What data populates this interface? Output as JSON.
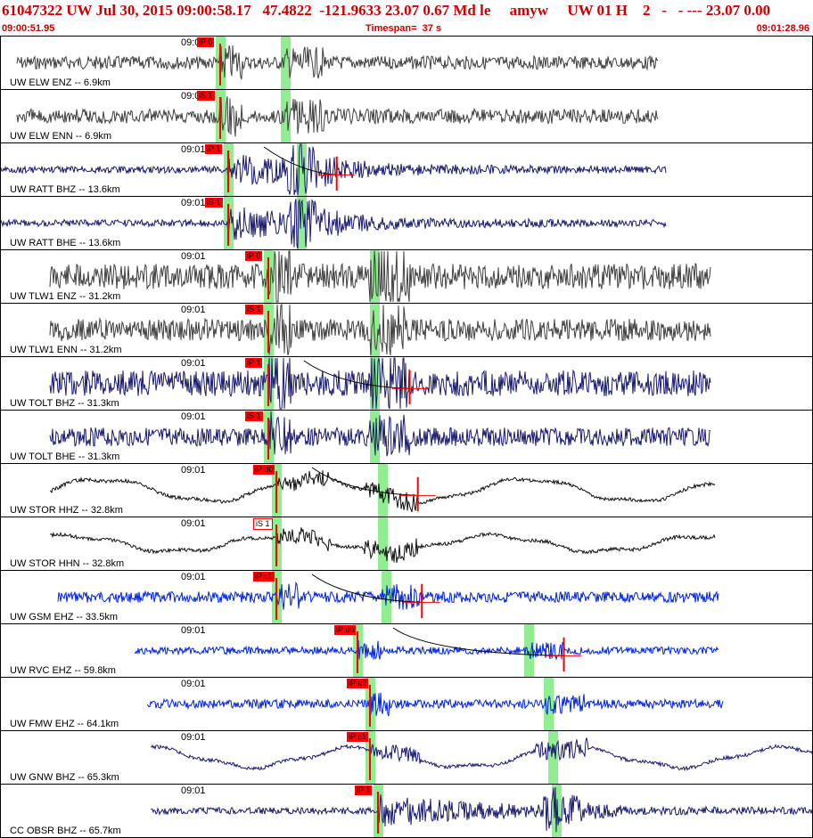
{
  "header": {
    "title": "61047322 UW Jul 30, 2015 09:00:58.17   47.4822  -121.9633 23.07 0.67 Md le     amyw     UW 01 H    2   -   - --- 23.07 0.00",
    "start_time": "09:00:51.95",
    "timespan": "Timespan=  37 s",
    "end_time": "09:01:28.96"
  },
  "colors": {
    "title": "#cc0000",
    "pick": "#ff0000",
    "phase_window": "#90ee90",
    "trace_gray": "#404040",
    "trace_navy": "#1a1a6e",
    "trace_blue": "#0022dd",
    "trace_black": "#111111"
  },
  "panels": [
    {
      "time_label": "09:01",
      "channel": "UW ELW ENZ -- 6.9km",
      "pick": "iP 0",
      "pick_style": "filled",
      "color": "#404040",
      "style": "noise",
      "start": 0.02,
      "end": 0.81,
      "onset": 0.27,
      "secondary": 0.355,
      "amp": 0.18,
      "windows": [
        0.27,
        0.35
      ]
    },
    {
      "time_label": "09:01",
      "channel": "UW ELW ENN -- 6.9km",
      "pick": "iS 1",
      "pick_style": "filled",
      "color": "#404040",
      "style": "noise",
      "start": 0.02,
      "end": 0.81,
      "onset": 0.27,
      "secondary": 0.355,
      "amp": 0.2,
      "windows": [
        0.27,
        0.35
      ]
    },
    {
      "time_label": "09:01",
      "channel": "UW RATT BHZ -- 13.6km",
      "pick": "iP 1",
      "pick_style": "filled",
      "color": "#1a1a6e",
      "style": "quake",
      "start": 0.0,
      "end": 0.82,
      "onset": 0.28,
      "secondary": 0.37,
      "amp": 0.35,
      "windows": [
        0.28,
        0.37
      ],
      "coda": true
    },
    {
      "time_label": "09:01",
      "channel": "UW RATT BHE -- 13.6km",
      "pick": "iS 1",
      "pick_style": "filled",
      "color": "#1a1a6e",
      "style": "quake",
      "start": 0.0,
      "end": 0.82,
      "onset": 0.28,
      "secondary": 0.37,
      "amp": 0.4,
      "windows": [
        0.28,
        0.37
      ]
    },
    {
      "time_label": "09:01",
      "channel": "UW TLW1 ENZ -- 31.2km",
      "pick": "iP 0",
      "pick_style": "filled",
      "color": "#404040",
      "style": "noise",
      "start": 0.06,
      "end": 0.875,
      "onset": 0.33,
      "secondary": 0.46,
      "amp": 0.35,
      "windows": [
        0.33,
        0.46
      ]
    },
    {
      "time_label": "09:01",
      "channel": "UW TLW1 ENN -- 31.2km",
      "pick": "iS 1",
      "pick_style": "filled",
      "color": "#404040",
      "style": "noise",
      "start": 0.06,
      "end": 0.875,
      "onset": 0.33,
      "secondary": 0.46,
      "amp": 0.3,
      "windows": [
        0.33,
        0.46
      ]
    },
    {
      "time_label": "09:01",
      "channel": "UW TOLT BHZ -- 31.3km",
      "pick": "iP 1",
      "pick_style": "filled",
      "color": "#1a1a6e",
      "style": "noise",
      "start": 0.06,
      "end": 0.875,
      "onset": 0.33,
      "secondary": 0.46,
      "amp": 0.35,
      "windows": [
        0.33,
        0.46
      ],
      "coda": true
    },
    {
      "time_label": "09:01",
      "channel": "UW TOLT BHE -- 31.3km",
      "pick": "iS 1",
      "pick_style": "filled",
      "color": "#1a1a6e",
      "style": "noise",
      "start": 0.06,
      "end": 0.875,
      "onset": 0.33,
      "secondary": 0.46,
      "amp": 0.25,
      "windows": [
        0.33,
        0.46
      ]
    },
    {
      "time_label": "09:01",
      "channel": "UW STOR HHZ -- 32.8km",
      "pick": "iP d0",
      "pick_style": "filled",
      "color": "#111111",
      "style": "wave",
      "start": 0.06,
      "end": 0.88,
      "onset": 0.34,
      "secondary": 0.47,
      "amp": 0.35,
      "windows": [
        0.34,
        0.47
      ],
      "coda": true
    },
    {
      "time_label": "09:01",
      "channel": "UW STOR HHN -- 32.8km",
      "pick": "iS 1",
      "pick_style": "hollow",
      "color": "#111111",
      "style": "wave",
      "start": 0.06,
      "end": 0.88,
      "onset": 0.34,
      "secondary": 0.47,
      "amp": 0.25,
      "windows": [
        0.34,
        0.47
      ]
    },
    {
      "time_label": "09:01",
      "channel": "UW GSM EHZ -- 33.5km",
      "pick": "iP c1",
      "pick_style": "filled",
      "color": "#0022dd",
      "style": "noise",
      "start": 0.07,
      "end": 0.885,
      "onset": 0.34,
      "secondary": 0.475,
      "amp": 0.15,
      "windows": [
        0.34,
        0.475
      ],
      "coda": true
    },
    {
      "time_label": "09:01",
      "channel": "UW RVC EHZ -- 59.8km",
      "pick": "iP d0",
      "pick_style": "filled",
      "color": "#0022dd",
      "style": "noise",
      "start": 0.165,
      "end": 0.885,
      "onset": 0.44,
      "secondary": 0.65,
      "amp": 0.1,
      "windows": [
        0.44,
        0.65
      ],
      "coda": true
    },
    {
      "time_label": "09:01",
      "channel": "UW FMW EHZ -- 64.1km",
      "pick": "iP d2",
      "pick_style": "filled",
      "color": "#0022dd",
      "style": "noise",
      "start": 0.18,
      "end": 0.89,
      "onset": 0.455,
      "secondary": 0.675,
      "amp": 0.12,
      "windows": [
        0.455,
        0.675
      ]
    },
    {
      "time_label": "09:01",
      "channel": "UW GNW BHZ -- 65.3km",
      "pick": "iP c1",
      "pick_style": "filled",
      "color": "#1a1a6e",
      "style": "wave",
      "start": 0.185,
      "end": 1.0,
      "onset": 0.455,
      "secondary": 0.68,
      "amp": 0.3,
      "windows": [
        0.455,
        0.68
      ]
    },
    {
      "time_label": "09:01",
      "channel": "CC OBSR BHZ -- 65.7km",
      "pick": "iP 1",
      "pick_style": "filled",
      "color": "#1a1a6e",
      "style": "quake",
      "start": 0.185,
      "end": 1.0,
      "onset": 0.465,
      "secondary": 0.685,
      "amp": 0.4,
      "windows": [
        0.465,
        0.685
      ]
    }
  ]
}
